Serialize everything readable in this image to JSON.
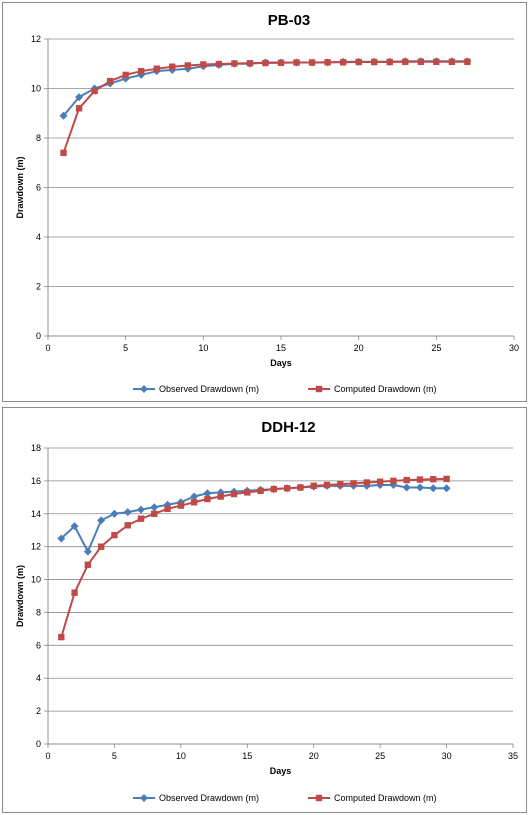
{
  "chart_data": [
    {
      "type": "line",
      "title": "PB-03",
      "xlabel": "Days",
      "ylabel": "Drawdown (m)",
      "xlim": [
        0,
        30
      ],
      "ylim": [
        0,
        12
      ],
      "xticks": [
        0,
        5,
        10,
        15,
        20,
        25,
        30
      ],
      "yticks": [
        0,
        2,
        4,
        6,
        8,
        10,
        12
      ],
      "grid": "horizontal",
      "legend": "bottom",
      "series": [
        {
          "name": "Observed Drawdown (m)",
          "color": "#4a7ebb",
          "marker": "diamond",
          "x": [
            1,
            2,
            3,
            4,
            5,
            6,
            7,
            8,
            9,
            10,
            11,
            12,
            13,
            14,
            15,
            16,
            17,
            18,
            19,
            20,
            21,
            22,
            23,
            24,
            25,
            26,
            27
          ],
          "y": [
            8.9,
            9.65,
            10.0,
            10.2,
            10.4,
            10.55,
            10.7,
            10.75,
            10.8,
            10.9,
            10.95,
            11.0,
            11.0,
            11.05,
            11.05,
            11.05,
            11.05,
            11.05,
            11.08,
            11.08,
            11.08,
            11.08,
            11.1,
            11.1,
            11.1,
            11.1,
            11.1
          ]
        },
        {
          "name": "Computed Drawdown (m)",
          "color": "#be4b48",
          "marker": "square",
          "x": [
            1,
            2,
            3,
            4,
            5,
            6,
            7,
            8,
            9,
            10,
            11,
            12,
            13,
            14,
            15,
            16,
            17,
            18,
            19,
            20,
            21,
            22,
            23,
            24,
            25,
            26,
            27
          ],
          "y": [
            7.4,
            9.2,
            9.9,
            10.3,
            10.55,
            10.7,
            10.8,
            10.88,
            10.93,
            10.97,
            10.99,
            11.01,
            11.02,
            11.03,
            11.04,
            11.05,
            11.05,
            11.06,
            11.06,
            11.07,
            11.07,
            11.07,
            11.08,
            11.08,
            11.08,
            11.08,
            11.08
          ]
        }
      ]
    },
    {
      "type": "line",
      "title": "DDH-12",
      "xlabel": "Days",
      "ylabel": "Drawdown (m)",
      "xlim": [
        0,
        35
      ],
      "ylim": [
        0,
        18
      ],
      "xticks": [
        0,
        5,
        10,
        15,
        20,
        25,
        30,
        35
      ],
      "yticks": [
        0,
        2,
        4,
        6,
        8,
        10,
        12,
        14,
        16,
        18
      ],
      "grid": "horizontal",
      "legend": "bottom",
      "series": [
        {
          "name": "Observed Drawdown (m)",
          "color": "#4a7ebb",
          "marker": "diamond",
          "x": [
            1,
            2,
            3,
            4,
            5,
            6,
            7,
            8,
            9,
            10,
            11,
            12,
            13,
            14,
            15,
            16,
            17,
            18,
            19,
            20,
            21,
            22,
            23,
            24,
            25,
            26,
            27,
            28,
            29,
            30
          ],
          "y": [
            12.5,
            13.25,
            11.7,
            13.6,
            14.0,
            14.1,
            14.25,
            14.4,
            14.55,
            14.7,
            15.05,
            15.25,
            15.3,
            15.35,
            15.4,
            15.45,
            15.5,
            15.55,
            15.6,
            15.65,
            15.7,
            15.7,
            15.7,
            15.7,
            15.75,
            15.75,
            15.6,
            15.6,
            15.55,
            15.55
          ]
        },
        {
          "name": "Computed Drawdown (m)",
          "color": "#be4b48",
          "marker": "square",
          "x": [
            1,
            2,
            3,
            4,
            5,
            6,
            7,
            8,
            9,
            10,
            11,
            12,
            13,
            14,
            15,
            16,
            17,
            18,
            19,
            20,
            21,
            22,
            23,
            24,
            25,
            26,
            27,
            28,
            29,
            30
          ],
          "y": [
            6.5,
            9.2,
            10.9,
            12.0,
            12.7,
            13.3,
            13.7,
            14.0,
            14.3,
            14.5,
            14.7,
            14.9,
            15.05,
            15.2,
            15.3,
            15.4,
            15.5,
            15.55,
            15.6,
            15.7,
            15.75,
            15.8,
            15.85,
            15.9,
            15.95,
            16.0,
            16.05,
            16.08,
            16.1,
            16.12
          ]
        }
      ]
    }
  ]
}
